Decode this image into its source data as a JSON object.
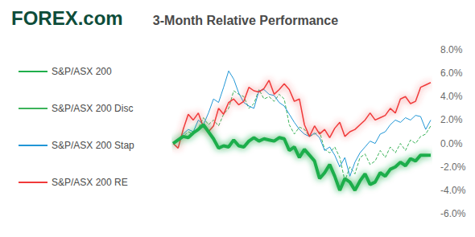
{
  "chart_data": {
    "type": "line",
    "title": "3-Month Relative Performance",
    "annotations": [
      "FOREX.com"
    ],
    "categories": [
      null,
      null,
      null,
      null,
      null,
      null,
      null,
      null,
      null,
      null,
      null,
      null,
      null,
      null,
      null,
      null,
      null,
      null,
      null,
      null,
      null,
      null,
      null,
      null,
      null,
      null,
      null,
      null,
      null,
      null,
      null,
      null,
      null,
      null,
      null,
      null,
      null,
      null,
      null,
      null,
      null,
      null,
      null,
      null,
      null,
      null,
      null,
      null,
      null,
      null,
      null,
      null
    ],
    "series": [
      {
        "name": "S&P/ASX 200",
        "color": "#1fae4b",
        "line_style": "solid",
        "values": [
          0,
          0.3,
          0.6,
          0.5,
          0.9,
          1.2,
          1.6,
          1.0,
          0.4,
          -0.4,
          -0.2,
          -0.3,
          0.3,
          -0.2,
          -0.3,
          0.2,
          0.5,
          0.2,
          0.4,
          0.3,
          0.2,
          0.5,
          0.4,
          -0.6,
          -0.3,
          -1.2,
          -0.5,
          -1.0,
          -1.5,
          -3.0,
          -2.5,
          -1.8,
          -2.8,
          -4.0,
          -3.0,
          -3.3,
          -4.0,
          -3.2,
          -2.6,
          -3.5,
          -3.3,
          -2.5,
          -2.8,
          -2.2,
          -2.0,
          -1.6,
          -1.9,
          -1.3,
          -1.5,
          -1.0,
          -1.0,
          -1.0
        ]
      },
      {
        "name": "S&P/ASX 200 Disc",
        "color": "#3cb35a",
        "line_style": "dashed",
        "values": [
          0,
          0.2,
          0.6,
          1.0,
          0.8,
          1.3,
          2.2,
          1.6,
          2.0,
          1.5,
          2.5,
          3.0,
          4.5,
          4.2,
          4.0,
          3.0,
          3.4,
          4.6,
          3.8,
          4.0,
          3.6,
          4.2,
          3.8,
          1.6,
          0.8,
          1.4,
          1.2,
          0.6,
          0.8,
          1.0,
          -0.5,
          -0.8,
          -0.3,
          -1.2,
          -3.2,
          -2.0,
          -2.6,
          -1.2,
          -0.9,
          -1.8,
          -1.5,
          -0.6,
          -1.2,
          -0.3,
          -0.8,
          0.0,
          -0.6,
          0.3,
          0.0,
          0.6,
          0.8,
          1.5
        ]
      },
      {
        "name": "S&P/ASX 200 Stap",
        "color": "#2196d6",
        "line_style": "solid",
        "values": [
          0,
          0.4,
          0.8,
          1.2,
          1.0,
          2.0,
          1.6,
          2.6,
          3.8,
          3.5,
          4.8,
          6.2,
          5.5,
          4.3,
          3.5,
          3.2,
          3.0,
          4.5,
          4.6,
          4.2,
          4.1,
          3.5,
          3.2,
          2.5,
          1.8,
          1.2,
          0.8,
          0.6,
          0.9,
          0.5,
          -0.6,
          -0.3,
          -1.0,
          -2.0,
          -1.2,
          -2.8,
          -1.6,
          -0.8,
          -0.3,
          0.2,
          0.0,
          0.8,
          1.0,
          1.6,
          2.0,
          1.8,
          2.2,
          2.0,
          2.4,
          2.3,
          1.2,
          2.0
        ]
      },
      {
        "name": "S&P/ASX 200 RE",
        "color": "#f03a3a",
        "line_style": "solid",
        "values": [
          0,
          -0.4,
          1.2,
          2.5,
          2.0,
          2.6,
          1.4,
          1.0,
          1.5,
          3.0,
          2.5,
          3.5,
          3.8,
          3.3,
          3.6,
          4.8,
          4.5,
          4.4,
          4.7,
          5.4,
          4.2,
          4.6,
          5.1,
          4.6,
          3.6,
          3.8,
          1.6,
          0.6,
          1.5,
          0.8,
          1.2,
          0.5,
          1.3,
          1.8,
          0.6,
          1.0,
          1.2,
          1.6,
          2.0,
          2.6,
          2.0,
          2.2,
          2.4,
          3.0,
          2.6,
          3.8,
          4.0,
          3.4,
          3.6,
          4.8,
          5.0,
          5.2
        ]
      }
    ],
    "ylim": [
      -6,
      8
    ],
    "yticks": [
      {
        "value": -6,
        "label": "-6.0%"
      },
      {
        "value": -4,
        "label": "-4.0%"
      },
      {
        "value": -2,
        "label": "-2.0%"
      },
      {
        "value": 0,
        "label": "0.0%"
      },
      {
        "value": 2,
        "label": "2.0%"
      },
      {
        "value": 4,
        "label": "4.0%"
      },
      {
        "value": 6,
        "label": "6.0%"
      },
      {
        "value": 8,
        "label": "8.0%"
      }
    ],
    "grid": false,
    "legend": "left",
    "tick_labels": "y"
  }
}
